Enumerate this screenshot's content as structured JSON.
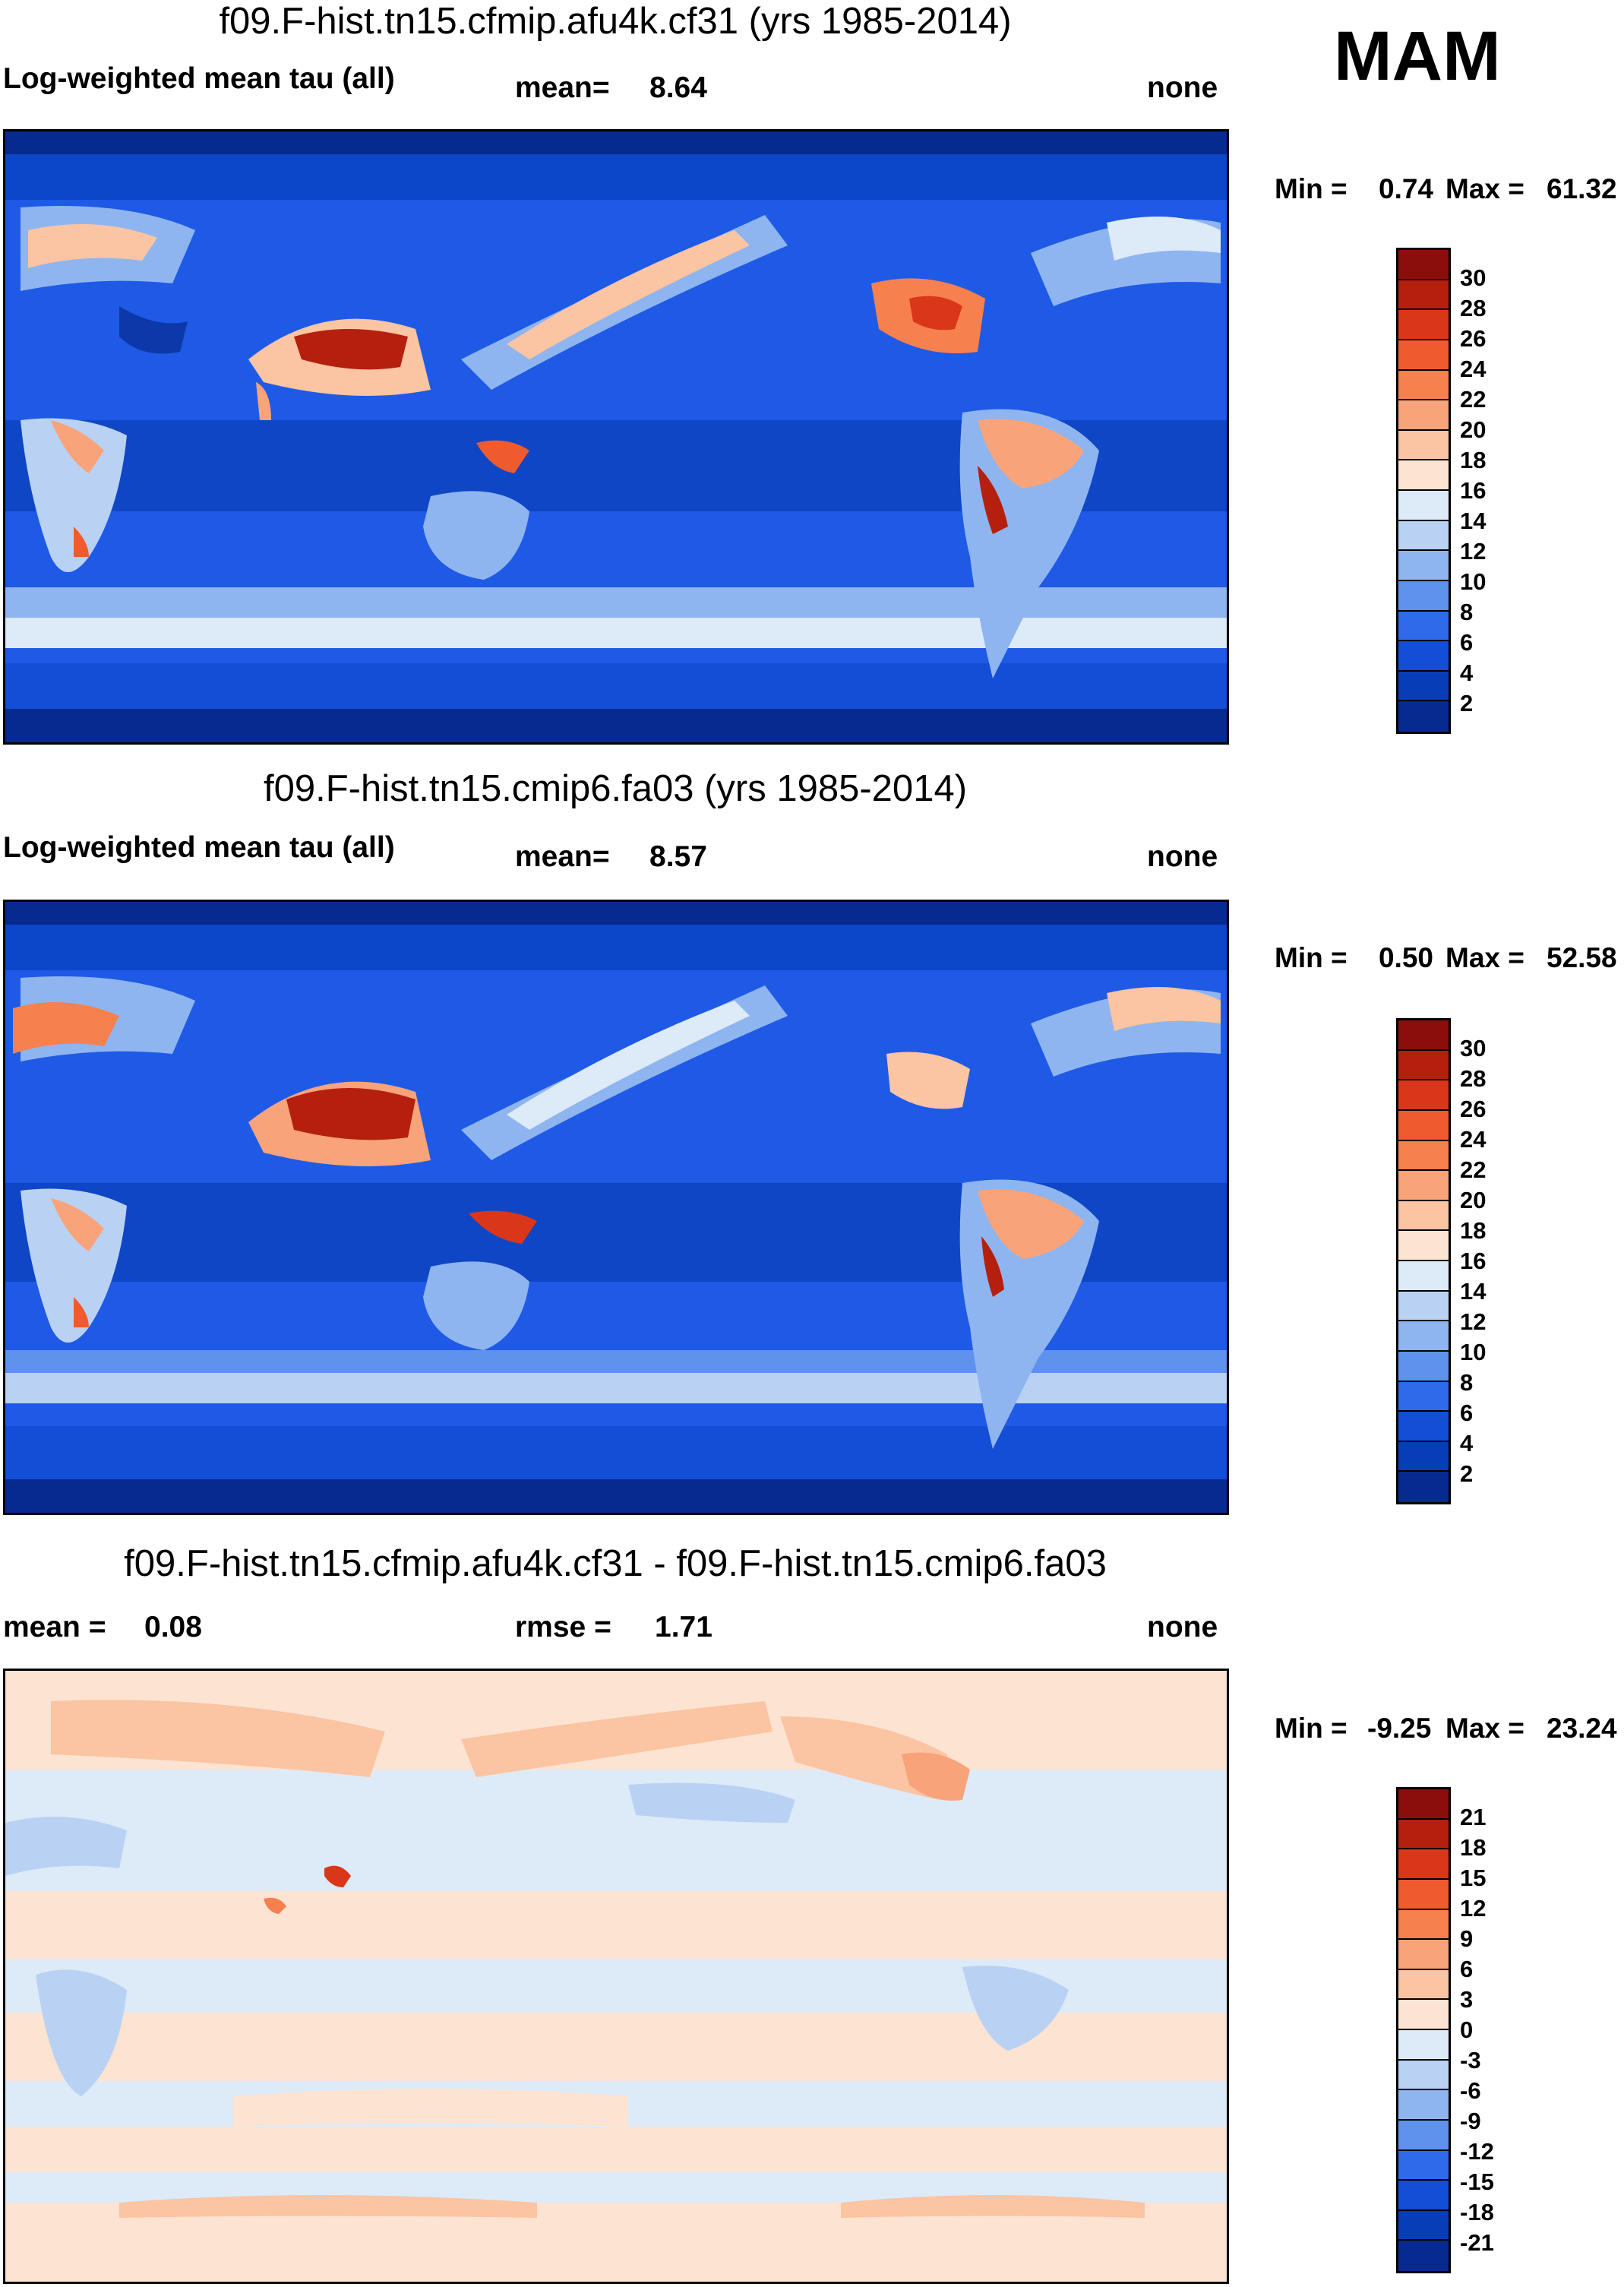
{
  "season": "MAM",
  "panels": [
    {
      "title": "f09.F-hist.tn15.cfmip.afu4k.cf31 (yrs 1985-2014)",
      "left_label": "Log-weighted mean tau (all)",
      "stat_label": "mean=",
      "stat_value": "8.64",
      "units": "none",
      "min_label": "Min =",
      "min_value": "0.74",
      "max_label": "Max =",
      "max_value": "61.32",
      "colorbar": {
        "labels": [
          "30",
          "28",
          "26",
          "24",
          "22",
          "20",
          "18",
          "16",
          "14",
          "12",
          "10",
          "8",
          "6",
          "4",
          "2"
        ],
        "colors": [
          "#8b0e0a",
          "#b51f0e",
          "#d9361a",
          "#ef5a2e",
          "#f6804e",
          "#f9a37a",
          "#fbc4a2",
          "#fde3d2",
          "#ddeaf8",
          "#b9d2f4",
          "#8fb5f0",
          "#5f92ec",
          "#2f6aea",
          "#124ed6",
          "#083db8",
          "#062a8f"
        ]
      }
    },
    {
      "title": "f09.F-hist.tn15.cmip6.fa03 (yrs 1985-2014)",
      "left_label": "Log-weighted mean tau (all)",
      "stat_label": "mean=",
      "stat_value": "8.57",
      "units": "none",
      "min_label": "Min =",
      "min_value": "0.50",
      "max_label": "Max =",
      "max_value": "52.58",
      "colorbar": {
        "labels": [
          "30",
          "28",
          "26",
          "24",
          "22",
          "20",
          "18",
          "16",
          "14",
          "12",
          "10",
          "8",
          "6",
          "4",
          "2"
        ],
        "colors": [
          "#8b0e0a",
          "#b51f0e",
          "#d9361a",
          "#ef5a2e",
          "#f6804e",
          "#f9a37a",
          "#fbc4a2",
          "#fde3d2",
          "#ddeaf8",
          "#b9d2f4",
          "#8fb5f0",
          "#5f92ec",
          "#2f6aea",
          "#124ed6",
          "#083db8",
          "#062a8f"
        ]
      }
    },
    {
      "title": "f09.F-hist.tn15.cfmip.afu4k.cf31 - f09.F-hist.tn15.cmip6.fa03",
      "left_label": "mean =",
      "left_value": "0.08",
      "stat_label": "rmse =",
      "stat_value": "1.71",
      "units": "none",
      "min_label": "Min =",
      "min_value": "-9.25",
      "max_label": "Max =",
      "max_value": "23.24",
      "colorbar": {
        "labels": [
          "21",
          "18",
          "15",
          "12",
          "9",
          "6",
          "3",
          "0",
          "-3",
          "-6",
          "-9",
          "-12",
          "-15",
          "-18",
          "-21"
        ],
        "colors": [
          "#8b0e0a",
          "#b51f0e",
          "#d9361a",
          "#ef5a2e",
          "#f6804e",
          "#f9a37a",
          "#fbc4a2",
          "#fde3d2",
          "#ddeaf8",
          "#b9d2f4",
          "#8fb5f0",
          "#5f92ec",
          "#2f6aea",
          "#124ed6",
          "#083db8",
          "#062a8f"
        ]
      }
    }
  ]
}
